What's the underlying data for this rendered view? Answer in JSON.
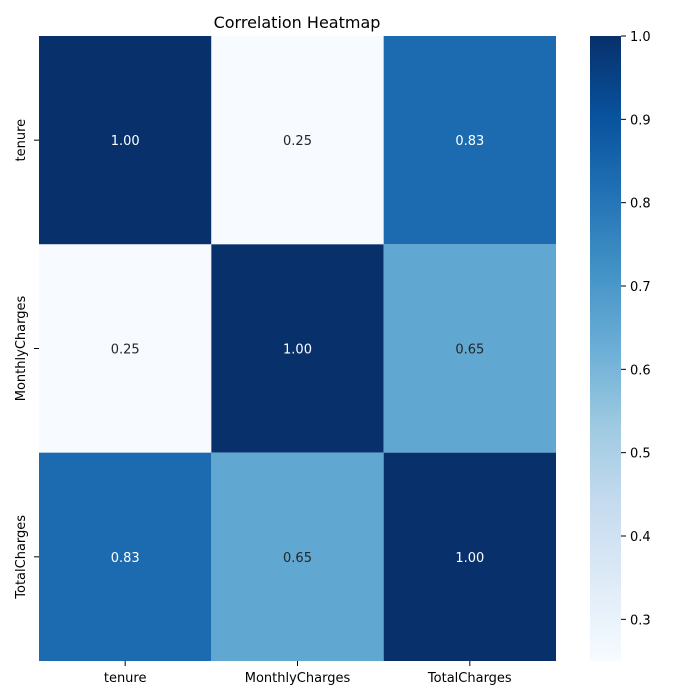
{
  "chart_data": {
    "type": "heatmap",
    "title": "Correlation Heatmap",
    "xlabel": "",
    "ylabel": "",
    "x_categories": [
      "tenure",
      "MonthlyCharges",
      "TotalCharges"
    ],
    "y_categories": [
      "tenure",
      "MonthlyCharges",
      "TotalCharges"
    ],
    "values": [
      [
        1.0,
        0.25,
        0.83
      ],
      [
        0.25,
        1.0,
        0.65
      ],
      [
        0.83,
        0.65,
        1.0
      ]
    ],
    "cell_labels": [
      [
        "1.00",
        "0.25",
        "0.83"
      ],
      [
        "0.25",
        "1.00",
        "0.65"
      ],
      [
        "0.83",
        "0.65",
        "1.00"
      ]
    ],
    "colormap": "Blues",
    "colorbar": {
      "range": [
        0.25,
        1.0
      ],
      "ticks": [
        0.3,
        0.4,
        0.5,
        0.6,
        0.7,
        0.8,
        0.9,
        1.0
      ],
      "tick_labels": [
        "0.3",
        "0.4",
        "0.5",
        "0.6",
        "0.7",
        "0.8",
        "0.9",
        "1.0"
      ]
    },
    "grid": false,
    "legend": "colorbar-right"
  }
}
